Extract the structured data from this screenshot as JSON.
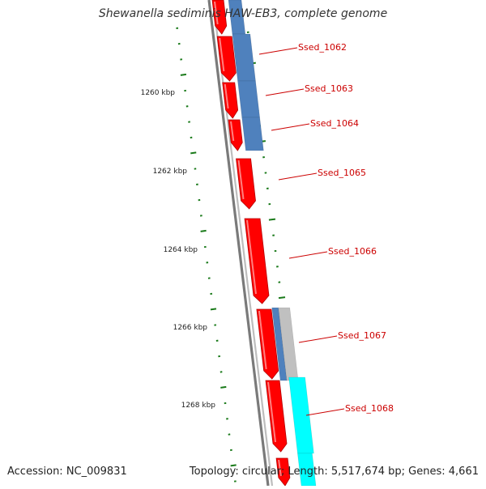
{
  "title": "Shewanella sediminis HAW-EB3, complete genome",
  "footer": {
    "accession": "Accession: NC_009831",
    "summary": "Topology: circular; Length: 5,517,674 bp; Genes: 4,661"
  },
  "colors": {
    "forward_cds": "#ff0000",
    "blast_hit": "#4f81bd",
    "blast_weak": "#c0c0c0",
    "cyan_feature": "#00ffff",
    "tick": "#1a7a1a",
    "label": "#cc0000",
    "backbone": "#888888"
  },
  "ruler": {
    "unit": "kbp",
    "labels": [
      {
        "kbp": 1260,
        "text": "1260 kbp"
      },
      {
        "kbp": 1262,
        "text": "1262 kbp"
      },
      {
        "kbp": 1264,
        "text": "1264 kbp"
      },
      {
        "kbp": 1266,
        "text": "1266 kbp"
      },
      {
        "kbp": 1268,
        "text": "1268 kbp"
      }
    ]
  },
  "genes": [
    {
      "label": "Ssed_1062"
    },
    {
      "label": "Ssed_1063"
    },
    {
      "label": "Ssed_1064"
    },
    {
      "label": "Ssed_1065"
    },
    {
      "label": "Ssed_1066"
    },
    {
      "label": "Ssed_1067"
    },
    {
      "label": "Ssed_1068"
    }
  ]
}
